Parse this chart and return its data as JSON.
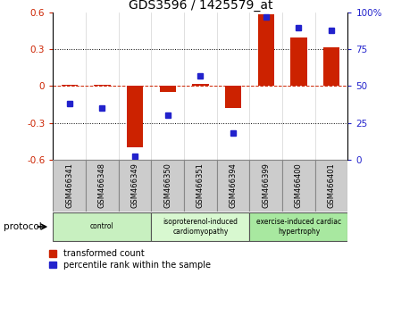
{
  "title": "GDS3596 / 1425579_at",
  "samples": [
    "GSM466341",
    "GSM466348",
    "GSM466349",
    "GSM466350",
    "GSM466351",
    "GSM466394",
    "GSM466399",
    "GSM466400",
    "GSM466401"
  ],
  "transformed_count": [
    0.01,
    0.01,
    -0.5,
    -0.05,
    0.02,
    -0.18,
    0.59,
    0.4,
    0.32
  ],
  "percentile_rank": [
    38,
    35,
    2,
    30,
    57,
    18,
    97,
    90,
    88
  ],
  "groups": [
    {
      "label": "control",
      "start": 0,
      "end": 3,
      "color": "#c8f0c0"
    },
    {
      "label": "isoproterenol-induced\ncardiomyopathy",
      "start": 3,
      "end": 6,
      "color": "#d8f8d0"
    },
    {
      "label": "exercise-induced cardiac\nhypertrophy",
      "start": 6,
      "end": 9,
      "color": "#a8e8a0"
    }
  ],
  "ylim_left": [
    -0.6,
    0.6
  ],
  "ylim_right": [
    0,
    100
  ],
  "yticks_left": [
    -0.6,
    -0.3,
    0.0,
    0.3,
    0.6
  ],
  "ytick_labels_right": [
    "0",
    "25",
    "50",
    "75",
    "100%"
  ],
  "bar_color": "#cc2200",
  "dot_color": "#2222cc",
  "bar_width": 0.5,
  "protocol_label": "protocol"
}
